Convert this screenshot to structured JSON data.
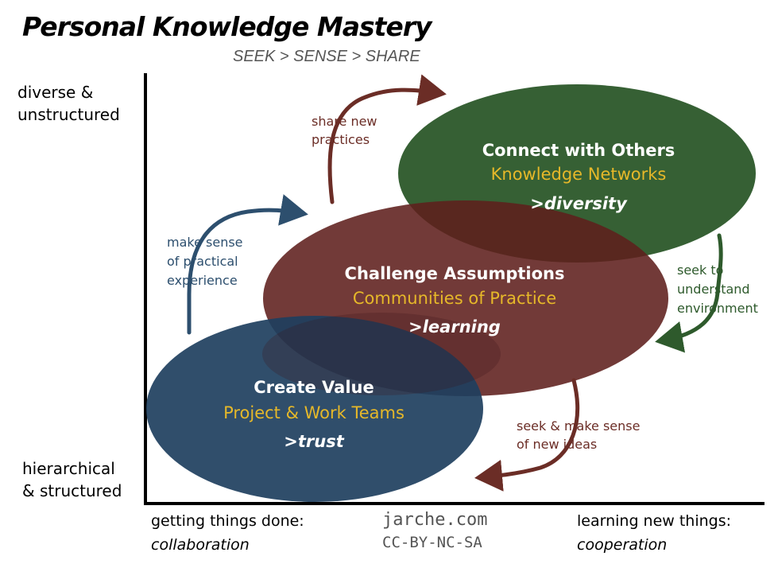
{
  "title": "Personal Knowledge Mastery",
  "subtitle": "SEEK > SENSE > SHARE",
  "y_axis": {
    "top": [
      "diverse &",
      "unstructured"
    ],
    "bottom": [
      "hierarchical",
      "& structured"
    ]
  },
  "x_axis": {
    "left": {
      "line1": "getting things done:",
      "line2": "collaboration"
    },
    "right": {
      "line1": "learning new things:",
      "line2": "cooperation"
    }
  },
  "credit": {
    "site": "jarche.com",
    "license": "CC-BY-NC-SA"
  },
  "ovals": [
    {
      "id": "connect",
      "title": "Connect with Others",
      "subtitle": "Knowledge Networks",
      "tag": ">diversity",
      "color": "#2e5a2c"
    },
    {
      "id": "challenge",
      "title": "Challenge Assumptions",
      "subtitle": "Communities of Practice",
      "tag": ">learning",
      "color": "#5e1f1c"
    },
    {
      "id": "create",
      "title": "Create Value",
      "subtitle": "Project & Work Teams",
      "tag": ">trust",
      "color": "#1e3f5e"
    }
  ],
  "arrows": [
    {
      "id": "share",
      "lines": [
        "share new",
        "practices"
      ],
      "color": "#6b2d26"
    },
    {
      "id": "sense",
      "lines": [
        "make sense",
        "of practical",
        "experience"
      ],
      "color": "#2d4f6e"
    },
    {
      "id": "understand",
      "lines": [
        "seek to",
        "understand",
        "environment"
      ],
      "color": "#2e5a2c"
    },
    {
      "id": "seek",
      "lines": [
        "seek & make sense",
        "of new ideas"
      ],
      "color": "#6b2d26"
    }
  ],
  "colors": {
    "highlight_text": "#e6b829",
    "axis": "#000000"
  }
}
